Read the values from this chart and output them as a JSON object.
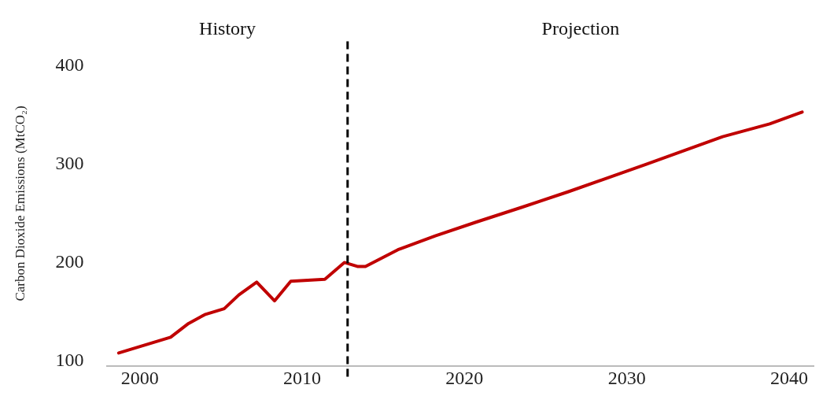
{
  "chart_data": {
    "type": "line",
    "ylabel": "Carbon Dioxide Emissions (MtCO₂)",
    "annotations": [
      "History",
      "Projection"
    ],
    "xlim": [
      1998,
      2041.5
    ],
    "xticks": [
      2000,
      2010,
      2020,
      2030,
      2040
    ],
    "ylim": [
      95,
      425
    ],
    "yticks": [
      100,
      200,
      300,
      400
    ],
    "grid": false,
    "legend": false,
    "marker": "none",
    "line_style": "solid",
    "ref_lines": [
      {
        "axis": "x",
        "value": 2012.8,
        "color": "#000000",
        "line_style": "dashed"
      }
    ],
    "series": [
      {
        "color": "#c00000",
        "x": [
          1998.7,
          2001.9,
          2003,
          2004,
          2005.2,
          2006.1,
          2007.2,
          2008.3,
          2009.3,
          2011.4,
          2012.6,
          2013.4,
          2013.9,
          2015.9,
          2018.2,
          2020.7,
          2023.5,
          2026.4,
          2031.2,
          2035.9,
          2038.8,
          2040.8
        ],
        "values": [
          108,
          124,
          138,
          147,
          153,
          167,
          180,
          161,
          181,
          183,
          200,
          196,
          196,
          213,
          227,
          241,
          256,
          272,
          300,
          328,
          341,
          353
        ]
      }
    ]
  }
}
